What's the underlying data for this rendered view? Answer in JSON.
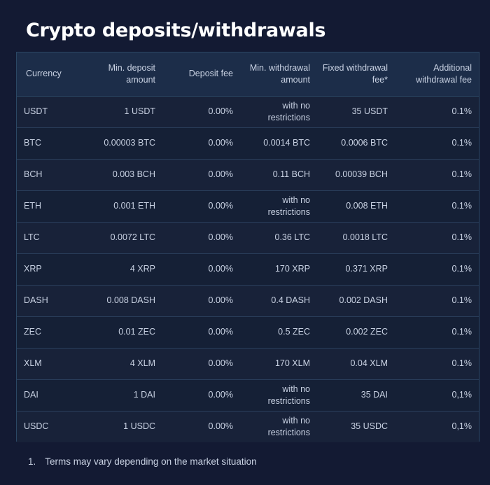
{
  "page": {
    "title": "Crypto deposits/withdrawals"
  },
  "table": {
    "headers": [
      [
        "Currency"
      ],
      [
        "Min. deposit",
        "amount"
      ],
      [
        "Deposit fee"
      ],
      [
        "Min. withdrawal",
        "amount"
      ],
      [
        "Fixed withdrawal",
        "fee*"
      ],
      [
        "Additional",
        "withdrawal fee"
      ]
    ],
    "rows": [
      [
        [
          "USDT"
        ],
        [
          "1 USDT"
        ],
        [
          "0.00%"
        ],
        [
          "with no",
          "restrictions"
        ],
        [
          "35 USDT"
        ],
        [
          "0.1%"
        ]
      ],
      [
        [
          "BTC"
        ],
        [
          "0.00003 BTC"
        ],
        [
          "0.00%"
        ],
        [
          "0.0014 BTC"
        ],
        [
          "0.0006 BTC"
        ],
        [
          "0.1%"
        ]
      ],
      [
        [
          "BCH"
        ],
        [
          "0.003 BCH"
        ],
        [
          "0.00%"
        ],
        [
          "0.11 BCH"
        ],
        [
          "0.00039 BCH"
        ],
        [
          "0.1%"
        ]
      ],
      [
        [
          "ETH"
        ],
        [
          "0.001 ETH"
        ],
        [
          "0.00%"
        ],
        [
          "with no",
          "restrictions"
        ],
        [
          "0.008 ETH"
        ],
        [
          "0.1%"
        ]
      ],
      [
        [
          "LTC"
        ],
        [
          "0.0072 LTC"
        ],
        [
          "0.00%"
        ],
        [
          "0.36 LTC"
        ],
        [
          "0.0018 LTC"
        ],
        [
          "0.1%"
        ]
      ],
      [
        [
          "XRP"
        ],
        [
          "4 XRP"
        ],
        [
          "0.00%"
        ],
        [
          "170 XRP"
        ],
        [
          "0.371 XRP"
        ],
        [
          "0.1%"
        ]
      ],
      [
        [
          "DASH"
        ],
        [
          "0.008 DASH"
        ],
        [
          "0.00%"
        ],
        [
          "0.4 DASH"
        ],
        [
          "0.002 DASH"
        ],
        [
          "0.1%"
        ]
      ],
      [
        [
          "ZEC"
        ],
        [
          "0.01 ZEC"
        ],
        [
          "0.00%"
        ],
        [
          "0.5 ZEC"
        ],
        [
          "0.002 ZEC"
        ],
        [
          "0.1%"
        ]
      ],
      [
        [
          "XLM"
        ],
        [
          "4 XLM"
        ],
        [
          "0.00%"
        ],
        [
          "170 XLM"
        ],
        [
          "0.04 XLM"
        ],
        [
          "0.1%"
        ]
      ],
      [
        [
          "DAI"
        ],
        [
          "1 DAI"
        ],
        [
          "0.00%"
        ],
        [
          "with no",
          "restrictions"
        ],
        [
          "35 DAI"
        ],
        [
          "0,1%"
        ]
      ],
      [
        [
          "USDC"
        ],
        [
          "1 USDC"
        ],
        [
          "0.00%"
        ],
        [
          "with no",
          "restrictions"
        ],
        [
          "35 USDC"
        ],
        [
          "0,1%"
        ]
      ]
    ]
  },
  "footnotes": [
    {
      "number": "1.",
      "text": "Terms may vary depending on the market situation"
    }
  ]
}
